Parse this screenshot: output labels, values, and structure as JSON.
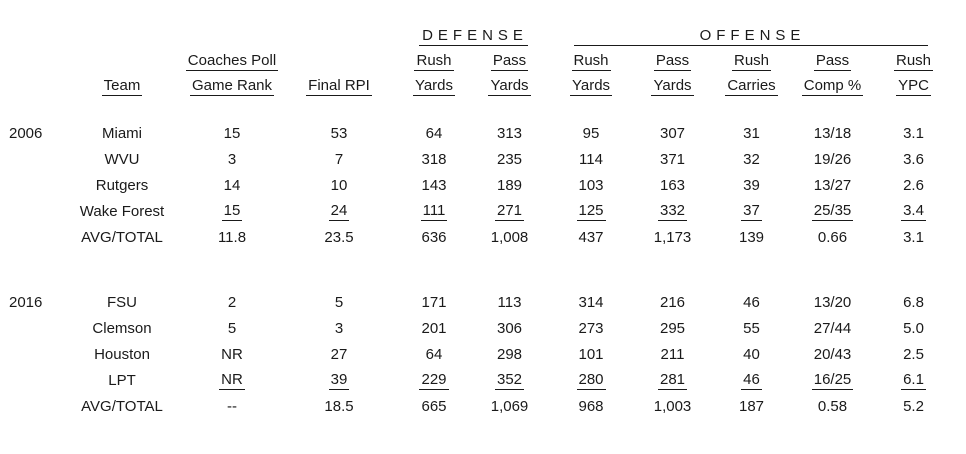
{
  "chart_data": {
    "type": "table",
    "section_headers": {
      "defense": "DEFENSE",
      "offense": "OFFENSE"
    },
    "columns": [
      {
        "id": "year",
        "line1": "",
        "line2": ""
      },
      {
        "id": "team",
        "line1": "",
        "line2": "Team"
      },
      {
        "id": "coaches-poll-game-rank",
        "line1": "Coaches Poll",
        "line2": "Game Rank"
      },
      {
        "id": "final-rpi",
        "line1": "",
        "line2": "Final RPI"
      },
      {
        "id": "defense-rush-yards",
        "line1": "Rush",
        "line2": "Yards"
      },
      {
        "id": "defense-pass-yards",
        "line1": "Pass",
        "line2": "Yards"
      },
      {
        "id": "offense-rush-yards",
        "line1": "Rush",
        "line2": "Yards"
      },
      {
        "id": "offense-pass-yards",
        "line1": "Pass",
        "line2": "Yards"
      },
      {
        "id": "offense-rush-carries",
        "line1": "Rush",
        "line2": "Carries"
      },
      {
        "id": "offense-pass-comp-pct",
        "line1": "Pass",
        "line2": "Comp %"
      },
      {
        "id": "offense-rush-ypc",
        "line1": "Rush",
        "line2": "YPC"
      }
    ],
    "groups": [
      {
        "year": "2006",
        "rows": [
          {
            "team": "Miami",
            "values": [
              "15",
              "53",
              "64",
              "313",
              "95",
              "307",
              "31",
              "13/18",
              "3.1"
            ],
            "underlined": false
          },
          {
            "team": "WVU",
            "values": [
              "3",
              "7",
              "318",
              "235",
              "114",
              "371",
              "32",
              "19/26",
              "3.6"
            ],
            "underlined": false
          },
          {
            "team": "Rutgers",
            "values": [
              "14",
              "10",
              "143",
              "189",
              "103",
              "163",
              "39",
              "13/27",
              "2.6"
            ],
            "underlined": false
          },
          {
            "team": "Wake Forest",
            "values": [
              "15",
              "24",
              "111",
              "271",
              "125",
              "332",
              "37",
              "25/35",
              "3.4"
            ],
            "underlined": true
          },
          {
            "team": "AVG/TOTAL",
            "values": [
              "11.8",
              "23.5",
              "636",
              "1,008",
              "437",
              "1,173",
              "139",
              "0.66",
              "3.1"
            ],
            "underlined": false
          }
        ]
      },
      {
        "year": "2016",
        "rows": [
          {
            "team": "FSU",
            "values": [
              "2",
              "5",
              "171",
              "113",
              "314",
              "216",
              "46",
              "13/20",
              "6.8"
            ],
            "underlined": false
          },
          {
            "team": "Clemson",
            "values": [
              "5",
              "3",
              "201",
              "306",
              "273",
              "295",
              "55",
              "27/44",
              "5.0"
            ],
            "underlined": false
          },
          {
            "team": "Houston",
            "values": [
              "NR",
              "27",
              "64",
              "298",
              "101",
              "211",
              "40",
              "20/43",
              "2.5"
            ],
            "underlined": false
          },
          {
            "team": "LPT",
            "values": [
              "NR",
              "39",
              "229",
              "352",
              "280",
              "281",
              "46",
              "16/25",
              "6.1"
            ],
            "underlined": true
          },
          {
            "team": "AVG/TOTAL",
            "values": [
              "--",
              "18.5",
              "665",
              "1,069",
              "968",
              "1,003",
              "187",
              "0.58",
              "5.2"
            ],
            "underlined": false
          }
        ]
      }
    ],
    "colors": {
      "text": "#1a1a1a",
      "background": "#ffffff"
    }
  }
}
